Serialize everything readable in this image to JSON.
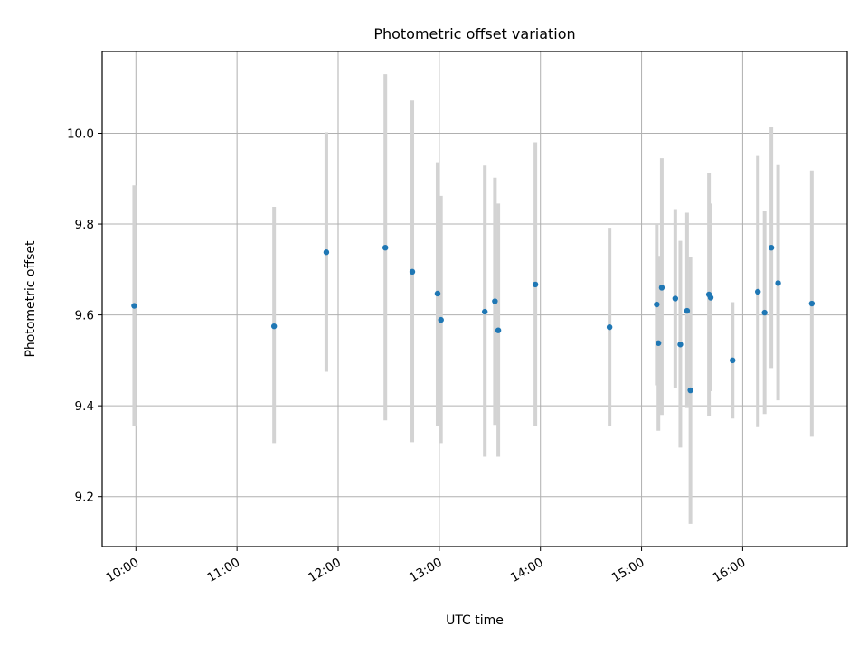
{
  "chart_data": {
    "type": "scatter",
    "title": "Photometric offset variation",
    "xlabel": "UTC time",
    "ylabel": "Photometric offset",
    "x_axis_type": "time",
    "xlim": [
      "09:40",
      "17:02"
    ],
    "ylim": [
      9.09,
      10.18
    ],
    "x_ticks": [
      "10:00",
      "11:00",
      "12:00",
      "13:00",
      "14:00",
      "15:00",
      "16:00"
    ],
    "y_ticks": [
      9.2,
      9.4,
      9.6,
      9.8,
      10.0
    ],
    "grid": true,
    "legend": "none",
    "colors": {
      "point": "#1f77b4",
      "errorbar": "#d3d3d3",
      "grid": "#b0b0b0"
    },
    "points": [
      {
        "x": "09:59",
        "y": 9.62,
        "ylow": 9.355,
        "yhigh": 9.885
      },
      {
        "x": "11:22",
        "y": 9.575,
        "ylow": 9.318,
        "yhigh": 9.838
      },
      {
        "x": "11:53",
        "y": 9.738,
        "ylow": 9.475,
        "yhigh": 10.002
      },
      {
        "x": "12:28",
        "y": 9.748,
        "ylow": 9.368,
        "yhigh": 10.13
      },
      {
        "x": "12:44",
        "y": 9.695,
        "ylow": 9.32,
        "yhigh": 10.072
      },
      {
        "x": "12:59",
        "y": 9.647,
        "ylow": 9.356,
        "yhigh": 9.936
      },
      {
        "x": "13:01",
        "y": 9.589,
        "ylow": 9.318,
        "yhigh": 9.862
      },
      {
        "x": "13:27",
        "y": 9.607,
        "ylow": 9.288,
        "yhigh": 9.929
      },
      {
        "x": "13:33",
        "y": 9.63,
        "ylow": 9.358,
        "yhigh": 9.902
      },
      {
        "x": "13:35",
        "y": 9.566,
        "ylow": 9.288,
        "yhigh": 9.845
      },
      {
        "x": "13:57",
        "y": 9.667,
        "ylow": 9.355,
        "yhigh": 9.98
      },
      {
        "x": "14:41",
        "y": 9.573,
        "ylow": 9.355,
        "yhigh": 9.792
      },
      {
        "x": "15:09",
        "y": 9.623,
        "ylow": 9.445,
        "yhigh": 9.8
      },
      {
        "x": "15:10",
        "y": 9.538,
        "ylow": 9.345,
        "yhigh": 9.73
      },
      {
        "x": "15:12",
        "y": 9.66,
        "ylow": 9.38,
        "yhigh": 9.945
      },
      {
        "x": "15:20",
        "y": 9.636,
        "ylow": 9.438,
        "yhigh": 9.833
      },
      {
        "x": "15:23",
        "y": 9.535,
        "ylow": 9.308,
        "yhigh": 9.763
      },
      {
        "x": "15:27",
        "y": 9.609,
        "ylow": 9.395,
        "yhigh": 9.825
      },
      {
        "x": "15:29",
        "y": 9.434,
        "ylow": 9.14,
        "yhigh": 9.728
      },
      {
        "x": "15:40",
        "y": 9.645,
        "ylow": 9.378,
        "yhigh": 9.912
      },
      {
        "x": "15:41",
        "y": 9.638,
        "ylow": 9.432,
        "yhigh": 9.845
      },
      {
        "x": "15:54",
        "y": 9.5,
        "ylow": 9.372,
        "yhigh": 9.628
      },
      {
        "x": "16:09",
        "y": 9.651,
        "ylow": 9.353,
        "yhigh": 9.95
      },
      {
        "x": "16:13",
        "y": 9.605,
        "ylow": 9.382,
        "yhigh": 9.828
      },
      {
        "x": "16:17",
        "y": 9.748,
        "ylow": 9.483,
        "yhigh": 10.013
      },
      {
        "x": "16:21",
        "y": 9.67,
        "ylow": 9.412,
        "yhigh": 9.93
      },
      {
        "x": "16:41",
        "y": 9.625,
        "ylow": 9.332,
        "yhigh": 9.918
      }
    ]
  }
}
